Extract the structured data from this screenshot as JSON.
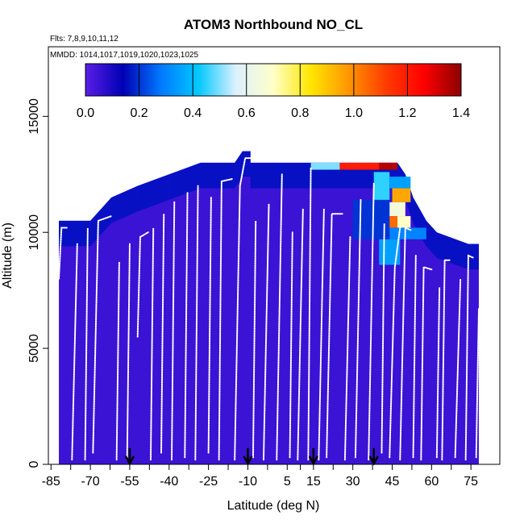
{
  "chart_data": {
    "type": "heatmap",
    "title": "ATOM3 Northbound NO_CL",
    "subtitle_flights": "Flts: 7,8,9,10,11,12",
    "subtitle_mmdd": "MMDD: 1014,1017,1019,1020,1023,1025",
    "xlabel": "Latitude (deg N)",
    "ylabel": "Altitude (m)",
    "xlim": [
      -86,
      86
    ],
    "ylim": [
      0,
      18000
    ],
    "x_ticks": [
      -85,
      -70,
      -55,
      -40,
      -25,
      -10,
      5,
      15,
      30,
      45,
      60,
      75
    ],
    "x_tick_labels": [
      "-85",
      "-70",
      "-55",
      "-40",
      "-25",
      "-10",
      "5",
      "15",
      "30",
      "45",
      "60",
      "75"
    ],
    "y_ticks": [
      0,
      5000,
      10000,
      15000
    ],
    "y_tick_labels": [
      "0",
      "5000",
      "10000",
      "15000"
    ],
    "colorbar": {
      "min": 0.0,
      "max": 1.4,
      "ticks": [
        0.0,
        0.2,
        0.4,
        0.6,
        0.8,
        1.0,
        1.2,
        1.4
      ],
      "tick_labels": [
        "0.0",
        "0.2",
        "0.4",
        "0.6",
        "0.8",
        "1.0",
        "1.2",
        "1.4"
      ],
      "stops": [
        "#5a1ee6",
        "#0000b4",
        "#0078ff",
        "#00c8ff",
        "#dcf0ff",
        "#ffffc8",
        "#ffe600",
        "#ff9600",
        "#ff3c00",
        "#ff0000",
        "#8c0000"
      ]
    },
    "curtain_top": [
      [
        -82,
        10500
      ],
      [
        -70,
        10500
      ],
      [
        -62,
        11500
      ],
      [
        -52,
        12000
      ],
      [
        -40,
        12500
      ],
      [
        -28,
        13000
      ],
      [
        -15,
        13000
      ],
      [
        -12,
        13500
      ],
      [
        -9,
        13500
      ],
      [
        -9,
        13000
      ],
      [
        0,
        13000
      ],
      [
        20,
        13000
      ],
      [
        47,
        13000
      ],
      [
        50,
        12500
      ],
      [
        53,
        11500
      ],
      [
        58,
        10500
      ],
      [
        62,
        10000
      ],
      [
        74,
        9500
      ],
      [
        78,
        9500
      ]
    ],
    "high_value_patches": [
      {
        "lat0": 25,
        "lat1": 47,
        "alt0": 12700,
        "alt1": 13000,
        "value": 1.2
      },
      {
        "lat0": 14,
        "lat1": 25,
        "alt0": 12700,
        "alt1": 13000,
        "value": 0.5
      },
      {
        "lat0": 40,
        "lat1": 47,
        "alt0": 12700,
        "alt1": 13000,
        "value": 1.35
      },
      {
        "lat0": 38,
        "lat1": 44,
        "alt0": 11400,
        "alt1": 12600,
        "value": 0.45
      },
      {
        "lat0": 44,
        "lat1": 52,
        "alt0": 11900,
        "alt1": 12400,
        "value": 0.35
      },
      {
        "lat0": 45,
        "lat1": 52,
        "alt0": 11300,
        "alt1": 11900,
        "value": 0.95
      },
      {
        "lat0": 43,
        "lat1": 50,
        "alt0": 10700,
        "alt1": 11300,
        "value": 0.65
      },
      {
        "lat0": 43,
        "lat1": 47,
        "alt0": 10200,
        "alt1": 10700,
        "value": 1.05
      },
      {
        "lat0": 47,
        "lat1": 52,
        "alt0": 10200,
        "alt1": 10700,
        "value": 0.7
      },
      {
        "lat0": 40,
        "lat1": 58,
        "alt0": 9700,
        "alt1": 10200,
        "value": 0.3
      },
      {
        "lat0": 40,
        "lat1": 48,
        "alt0": 8600,
        "alt1": 9700,
        "value": 0.35
      },
      {
        "lat0": 30,
        "lat1": 44,
        "alt0": 9700,
        "alt1": 11400,
        "value": 0.2
      }
    ],
    "flight_arrows": [
      -55,
      -10,
      15,
      38
    ],
    "profile_segments": [
      [
        [
          -82,
          8000
        ],
        [
          -81,
          10200
        ],
        [
          -79,
          10200
        ]
      ],
      [
        [
          -77,
          200
        ],
        [
          -75,
          9500
        ]
      ],
      [
        [
          -72,
          200
        ],
        [
          -71,
          10200
        ]
      ],
      [
        [
          -69,
          500
        ],
        [
          -67,
          10500
        ],
        [
          -62,
          10700
        ]
      ],
      [
        [
          -60,
          200
        ],
        [
          -59,
          8700
        ]
      ],
      [
        [
          -56,
          200
        ],
        [
          -55,
          9500
        ]
      ],
      [
        [
          -52,
          5500
        ],
        [
          -51,
          9800
        ],
        [
          -48,
          10000
        ]
      ],
      [
        [
          -47,
          200
        ],
        [
          -46,
          10200
        ]
      ],
      [
        [
          -43,
          500
        ],
        [
          -42,
          10800
        ]
      ],
      [
        [
          -39,
          200
        ],
        [
          -38,
          11300
        ]
      ],
      [
        [
          -34,
          300
        ],
        [
          -33,
          11700
        ]
      ],
      [
        [
          -30,
          200
        ],
        [
          -29,
          12000
        ]
      ],
      [
        [
          -25,
          500
        ],
        [
          -24,
          11500
        ]
      ],
      [
        [
          -21,
          200
        ],
        [
          -20,
          12200
        ],
        [
          -16,
          12300
        ]
      ],
      [
        [
          -15,
          200
        ],
        [
          -13,
          12000
        ],
        [
          -11,
          13200
        ],
        [
          -9,
          13200
        ]
      ],
      [
        [
          -8,
          300
        ],
        [
          -7,
          10500
        ]
      ],
      [
        [
          -4,
          200
        ],
        [
          -2,
          11200
        ]
      ],
      [
        [
          1,
          200
        ],
        [
          3,
          12500
        ]
      ],
      [
        [
          6,
          300
        ],
        [
          7,
          10000
        ]
      ],
      [
        [
          9,
          200
        ],
        [
          11,
          11000
        ]
      ],
      [
        [
          13,
          200
        ],
        [
          14,
          12800
        ]
      ],
      [
        [
          17,
          200
        ],
        [
          19,
          11000
        ]
      ],
      [
        [
          20,
          300
        ],
        [
          22,
          10800
        ],
        [
          26,
          10800
        ]
      ],
      [
        [
          27,
          200
        ],
        [
          29,
          9800
        ]
      ],
      [
        [
          31,
          300
        ],
        [
          33,
          11400
        ]
      ],
      [
        [
          36,
          200
        ],
        [
          38,
          12100
        ]
      ],
      [
        [
          41,
          500
        ],
        [
          42,
          10400
        ]
      ],
      [
        [
          44,
          300
        ],
        [
          46,
          8500
        ],
        [
          48,
          10200
        ]
      ],
      [
        [
          48,
          200
        ],
        [
          50,
          10200
        ],
        [
          52,
          10100
        ]
      ],
      [
        [
          53,
          300
        ],
        [
          54,
          9000
        ]
      ],
      [
        [
          56,
          200
        ],
        [
          57,
          8500
        ],
        [
          60,
          8400
        ]
      ],
      [
        [
          62,
          300
        ],
        [
          63,
          7600
        ]
      ],
      [
        [
          64,
          200
        ],
        [
          65,
          8800
        ],
        [
          67,
          8800
        ]
      ],
      [
        [
          69,
          300
        ],
        [
          71,
          8000
        ]
      ],
      [
        [
          73,
          200
        ],
        [
          74,
          9000
        ],
        [
          76,
          8900
        ]
      ],
      [
        [
          77,
          300
        ],
        [
          78,
          6700
        ]
      ]
    ]
  }
}
